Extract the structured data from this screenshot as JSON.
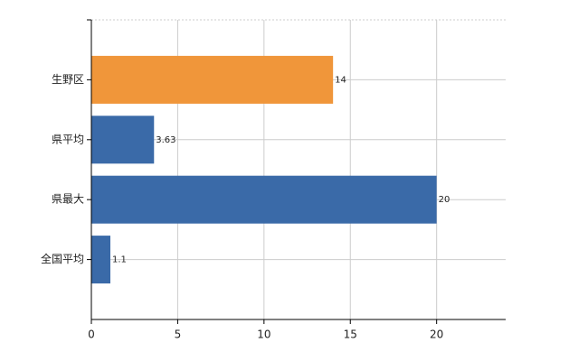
{
  "chart_data": {
    "type": "barh",
    "categories": [
      "生野区",
      "県平均",
      "県最大",
      "全国平均"
    ],
    "values": [
      14,
      3.63,
      20,
      1.1
    ],
    "colors": [
      "#f0963a",
      "#3a6aa8",
      "#3a6aa8",
      "#3a6aa8"
    ],
    "xlim": [
      0,
      24
    ],
    "xticks": [
      0,
      5,
      10,
      15,
      20
    ],
    "grid": true
  }
}
